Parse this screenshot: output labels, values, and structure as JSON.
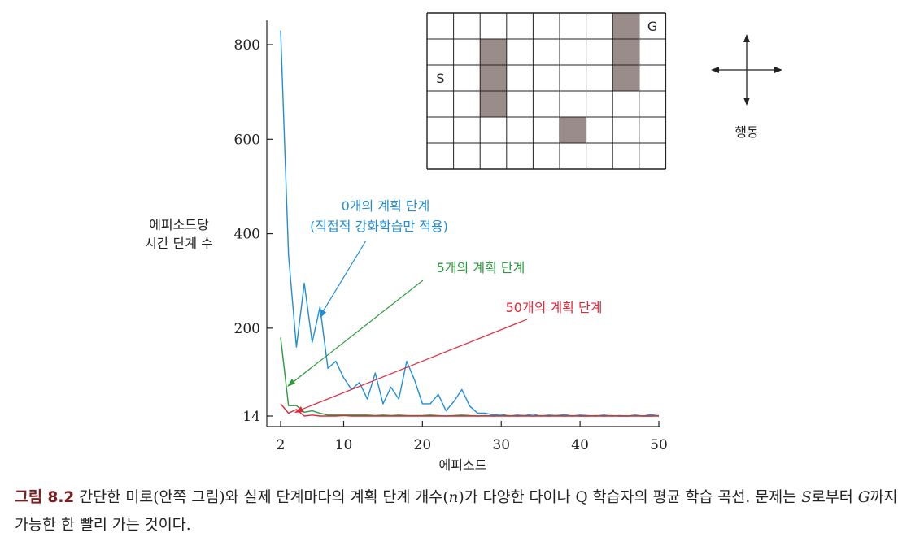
{
  "chart_data": {
    "type": "line",
    "ylabel": [
      "에피소드당",
      "시간 단계 수"
    ],
    "xlabel": "에피소드",
    "xlim": [
      1,
      50
    ],
    "ylim": [
      0,
      850
    ],
    "xticks": [
      2,
      10,
      20,
      30,
      40,
      50
    ],
    "yticks": [
      14,
      200,
      400,
      600,
      800
    ],
    "series": [
      {
        "name": "0개의 계획 단계",
        "note": "(직접적 강화학습만 적용)",
        "color": "#1f8ed6",
        "x": [
          2,
          3,
          4,
          5,
          6,
          7,
          8,
          9,
          10,
          11,
          12,
          13,
          14,
          15,
          16,
          17,
          18,
          19,
          20,
          21,
          22,
          23,
          24,
          25,
          26,
          27,
          28,
          29,
          30,
          31,
          32,
          33,
          34,
          35,
          36,
          37,
          38,
          39,
          40,
          41,
          42,
          43,
          44,
          45,
          46,
          47,
          48,
          49,
          50
        ],
        "y": [
          830,
          355,
          160,
          295,
          170,
          245,
          115,
          130,
          95,
          70,
          85,
          50,
          105,
          40,
          75,
          50,
          130,
          90,
          40,
          40,
          60,
          25,
          45,
          70,
          35,
          20,
          20,
          16,
          18,
          14,
          16,
          15,
          18,
          14,
          16,
          15,
          17,
          14,
          16,
          15,
          14,
          16,
          14,
          15,
          14,
          16,
          14,
          17,
          14
        ]
      },
      {
        "name": "5개의 계획 단계",
        "color": "#2d9a3e",
        "x": [
          2,
          3,
          4,
          5,
          6,
          7,
          8,
          9,
          10,
          11,
          12,
          13,
          14,
          15,
          16,
          17,
          18,
          19,
          20,
          21,
          22,
          23,
          24,
          25,
          26,
          27,
          28,
          29,
          30,
          31,
          32,
          33,
          34,
          35,
          36,
          37,
          38,
          39,
          40,
          41,
          42,
          43,
          44,
          45,
          46,
          47,
          48,
          49,
          50
        ],
        "y": [
          180,
          36,
          36,
          22,
          25,
          20,
          16,
          16,
          16,
          16,
          16,
          16,
          15,
          16,
          15,
          16,
          15,
          15,
          15,
          16,
          15,
          14,
          15,
          16,
          15,
          14,
          15,
          14,
          15,
          15,
          14,
          15,
          14,
          15,
          14,
          15,
          14,
          15,
          14,
          14,
          15,
          14,
          15,
          14,
          14,
          15,
          14,
          14,
          15
        ]
      },
      {
        "name": "50개의 계획 단계",
        "color": "#e0283a",
        "x": [
          2,
          3,
          4,
          5,
          6,
          7,
          8,
          9,
          10,
          11,
          12,
          13,
          14,
          15,
          16,
          17,
          18,
          19,
          20,
          21,
          22,
          23,
          24,
          25,
          26,
          27,
          28,
          29,
          30,
          31,
          32,
          33,
          34,
          35,
          36,
          37,
          38,
          39,
          40,
          41,
          42,
          43,
          44,
          45,
          46,
          47,
          48,
          49,
          50
        ],
        "y": [
          40,
          20,
          28,
          14,
          16,
          14,
          14,
          14,
          15,
          14,
          14,
          14,
          14,
          14,
          14,
          14,
          14,
          14,
          14,
          14,
          14,
          14,
          14,
          14,
          14,
          14,
          14,
          14,
          14,
          14,
          14,
          14,
          14,
          14,
          14,
          14,
          14,
          14,
          14,
          14,
          14,
          14,
          14,
          14,
          14,
          14,
          14,
          14,
          14
        ]
      }
    ]
  },
  "maze": {
    "cols": 9,
    "rows": 6,
    "walls": [
      [
        2,
        1
      ],
      [
        2,
        2
      ],
      [
        2,
        3
      ],
      [
        7,
        0
      ],
      [
        7,
        1
      ],
      [
        7,
        2
      ],
      [
        5,
        4
      ]
    ],
    "start_label": "S",
    "start_cell": [
      0,
      2
    ],
    "goal_label": "G",
    "goal_cell": [
      8,
      0
    ],
    "wall_color": "#9a8c89"
  },
  "actions_label": "행동",
  "caption": {
    "label": "그림 8.2",
    "part1": "간단한 미로(안쪽 그림)와 실제 단계마다의 계획 단계 개수(",
    "n": "n",
    "part2": ")가 다양한 다이나 Q 학습자의 평균 학습 곡선. 문제는 ",
    "s": "S",
    "part3": "로부터 ",
    "g": "G",
    "part4": "까지 가능한 한 빨리 가는 것이다."
  }
}
